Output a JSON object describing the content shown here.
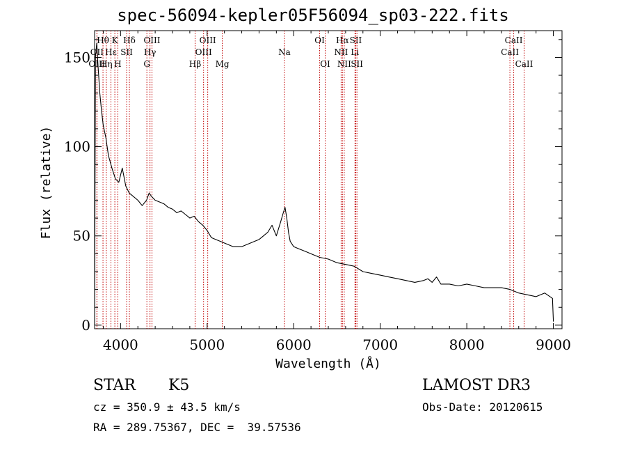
{
  "title": "spec-56094-kepler05F56094_sp03-222.fits",
  "info": {
    "class": "STAR",
    "subclass": "K5",
    "survey": "LAMOST DR3",
    "velocity": "cz = 350.9 ± 43.5 km/s",
    "obs_date": "Obs-Date: 20120615",
    "coords": "RA = 289.75367, DEC =  39.57536"
  },
  "chart_data": {
    "type": "line",
    "title": "spec-56094-kepler05F56094_sp03-222.fits",
    "xlabel": "Wavelength (Å)",
    "ylabel": "Flux (relative)",
    "xlim": [
      3700,
      9100
    ],
    "ylim": [
      -2,
      165
    ],
    "x_ticks": [
      4000,
      5000,
      6000,
      7000,
      8000,
      9000
    ],
    "y_ticks": [
      0,
      50,
      100,
      150
    ],
    "series": [
      {
        "name": "spectrum",
        "x": [
          3700,
          3710,
          3725,
          3740,
          3760,
          3780,
          3800,
          3830,
          3860,
          3900,
          3940,
          3980,
          4020,
          4060,
          4100,
          4150,
          4200,
          4250,
          4300,
          4330,
          4360,
          4400,
          4450,
          4500,
          4550,
          4600,
          4650,
          4700,
          4750,
          4800,
          4850,
          4900,
          4950,
          5000,
          5050,
          5100,
          5150,
          5200,
          5300,
          5400,
          5500,
          5600,
          5700,
          5750,
          5800,
          5850,
          5880,
          5900,
          5920,
          5940,
          5960,
          6000,
          6050,
          6100,
          6150,
          6200,
          6300,
          6400,
          6500,
          6600,
          6700,
          6800,
          6900,
          7000,
          7100,
          7200,
          7300,
          7400,
          7500,
          7550,
          7600,
          7650,
          7700,
          7800,
          7900,
          8000,
          8100,
          8200,
          8300,
          8400,
          8500,
          8600,
          8700,
          8800,
          8900,
          8990,
          9000
        ],
        "y": [
          0,
          150,
          158,
          145,
          130,
          120,
          112,
          105,
          95,
          88,
          82,
          80,
          88,
          78,
          74,
          72,
          70,
          67,
          70,
          74,
          72,
          70,
          69,
          68,
          66,
          65,
          63,
          64,
          62,
          60,
          61,
          58,
          56,
          53,
          49,
          48,
          47,
          46,
          44,
          44,
          46,
          48,
          52,
          56,
          50,
          58,
          63,
          66,
          60,
          52,
          47,
          44,
          43,
          42,
          41,
          40,
          38,
          37,
          35,
          34,
          33,
          30,
          29,
          28,
          27,
          26,
          25,
          24,
          25,
          26,
          24,
          27,
          23,
          23,
          22,
          23,
          22,
          21,
          21,
          21,
          20,
          18,
          17,
          16,
          18,
          15,
          2
        ]
      }
    ],
    "line_markers": [
      {
        "label": "Hθ",
        "x": 3797,
        "row": 0
      },
      {
        "label": "OII",
        "x": 3727,
        "row": 1
      },
      {
        "label": "OIII",
        "x": 3727,
        "row": 2
      },
      {
        "label": "K",
        "x": 3934,
        "row": 0
      },
      {
        "label": "Hε",
        "x": 3889,
        "row": 1
      },
      {
        "label": "Hη",
        "x": 3835,
        "row": 2
      },
      {
        "label": "SII",
        "x": 4070,
        "row": 1
      },
      {
        "label": "H",
        "x": 3968,
        "row": 2
      },
      {
        "label": "Hδ",
        "x": 4102,
        "row": 0
      },
      {
        "label": "OIII",
        "x": 4363,
        "row": 0
      },
      {
        "label": "Hγ",
        "x": 4340,
        "row": 1
      },
      {
        "label": "G",
        "x": 4304,
        "row": 2
      },
      {
        "label": "OIII",
        "x": 5007,
        "row": 0
      },
      {
        "label": "OIII",
        "x": 4959,
        "row": 1
      },
      {
        "label": "Hβ",
        "x": 4861,
        "row": 2
      },
      {
        "label": "Mg",
        "x": 5175,
        "row": 2
      },
      {
        "label": "Na",
        "x": 5893,
        "row": 1
      },
      {
        "label": "OI",
        "x": 6300,
        "row": 0
      },
      {
        "label": "OI",
        "x": 6364,
        "row": 2
      },
      {
        "label": "Hα",
        "x": 6563,
        "row": 0
      },
      {
        "label": "SII",
        "x": 6717,
        "row": 0
      },
      {
        "label": "NII",
        "x": 6548,
        "row": 1
      },
      {
        "label": "Li",
        "x": 6708,
        "row": 1
      },
      {
        "label": "NII",
        "x": 6584,
        "row": 2
      },
      {
        "label": "SII",
        "x": 6731,
        "row": 2
      },
      {
        "label": "CaII",
        "x": 8542,
        "row": 0
      },
      {
        "label": "CaII",
        "x": 8498,
        "row": 1
      },
      {
        "label": "CaII",
        "x": 8662,
        "row": 2
      }
    ]
  }
}
